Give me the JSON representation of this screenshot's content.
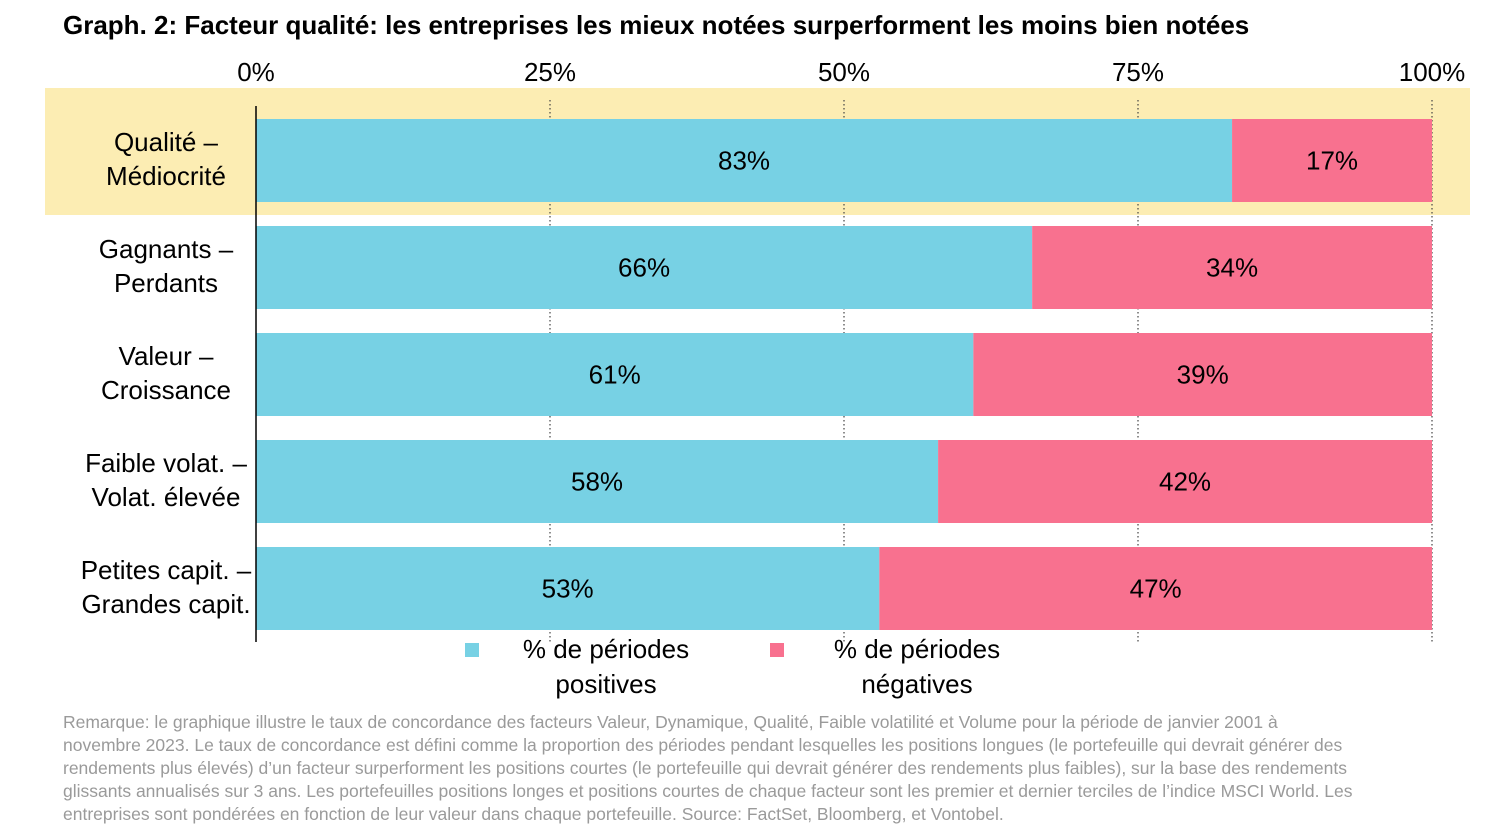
{
  "chart_data": {
    "type": "bar",
    "stacked": true,
    "orientation": "horizontal",
    "title": "Graph. 2: Facteur qualité: les entreprises les mieux notées surperforment les moins bien notées",
    "categories": [
      [
        "Qualité –",
        "Médiocrité"
      ],
      [
        "Gagnants –",
        "Perdants"
      ],
      [
        "Valeur –",
        "Croissance"
      ],
      [
        "Faible volat. –",
        "Volat. élevée"
      ],
      [
        "Petites capit. –",
        "Grandes capit."
      ]
    ],
    "highlighted_category": 0,
    "series": [
      {
        "name": [
          "% de périodes",
          "positives"
        ],
        "color": "#77D1E4",
        "values": [
          83,
          66,
          61,
          58,
          53
        ]
      },
      {
        "name": [
          "% de périodes",
          "négatives"
        ],
        "color": "#F8718F",
        "values": [
          17,
          34,
          39,
          42,
          47
        ]
      }
    ],
    "xticks": [
      "0%",
      "25%",
      "50%",
      "75%",
      "100%"
    ],
    "xlim": [
      0,
      100
    ],
    "grid": "vertical dotted",
    "legend": "bottom",
    "highlight_color": "#FCEDB3"
  },
  "note_lines": [
    "Remarque: le graphique illustre le taux de concordance des facteurs Valeur, Dynamique, Qualité, Faible volatilité et Volume pour la période de janvier 2001 à",
    "novembre 2023. Le taux de concordance est défini comme la proportion des périodes pendant lesquelles les positions longues (le portefeuille qui devrait générer des",
    "rendements plus élevés) d’un facteur surperforment les positions courtes (le portefeuille qui devrait générer des rendements plus faibles), sur la base des rendements",
    "glissants annualisés sur 3 ans. Les portefeuilles positions longes et positions courtes de chaque facteur sont les premier et dernier terciles de l’indice MSCI World. Les",
    "entreprises sont pondérées en fonction de leur valeur dans chaque portefeuille. Source: FactSet, Bloomberg, et Vontobel."
  ]
}
